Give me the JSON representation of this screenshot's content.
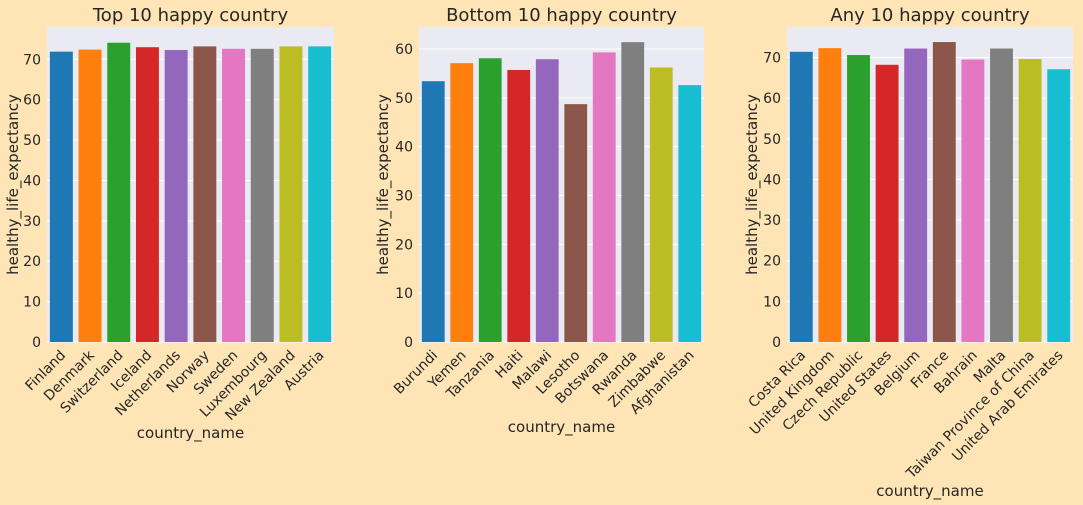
{
  "figure": {
    "background": "#ffe4b5",
    "plot_background": "#eaeaf2",
    "grid_color": "#ffffff"
  },
  "palette": [
    "#1f77b4",
    "#ff7f0e",
    "#2ca02c",
    "#d62728",
    "#9467bd",
    "#8c564b",
    "#e377c2",
    "#7f7f7f",
    "#bcbd22",
    "#17becf"
  ],
  "chart_data": [
    {
      "type": "bar",
      "title": "Top 10 happy country",
      "xlabel": "country_name",
      "ylabel": "healthy_life_expectancy",
      "categories": [
        "Finland",
        "Denmark",
        "Switzerland",
        "Iceland",
        "Netherlands",
        "Norway",
        "Sweden",
        "Luxembourg",
        "New Zealand",
        "Austria"
      ],
      "values": [
        71.9,
        72.4,
        74.1,
        73.0,
        72.3,
        73.2,
        72.6,
        72.6,
        73.2,
        73.2
      ],
      "ylim": [
        0,
        78
      ],
      "yticks": [
        0,
        10,
        20,
        30,
        40,
        50,
        60,
        70
      ],
      "grid": true
    },
    {
      "type": "bar",
      "title": "Bottom 10 happy country",
      "xlabel": "country_name",
      "ylabel": "healthy_life_expectancy",
      "categories": [
        "Burundi",
        "Yemen",
        "Tanzania",
        "Haiti",
        "Malawi",
        "Lesotho",
        "Botswana",
        "Rwanda",
        "Zimbabwe",
        "Afghanistan"
      ],
      "values": [
        53.4,
        57.1,
        58.1,
        55.7,
        57.9,
        48.7,
        59.3,
        61.4,
        56.2,
        52.6
      ],
      "ylim": [
        0,
        64.5
      ],
      "yticks": [
        0,
        10,
        20,
        30,
        40,
        50,
        60
      ],
      "grid": true
    },
    {
      "type": "bar",
      "title": "Any 10 happy country",
      "xlabel": "country_name",
      "ylabel": "healthy_life_expectancy",
      "categories": [
        "Costa Rica",
        "United Kingdom",
        "Czech Republic",
        "United States",
        "Belgium",
        "France",
        "Bahrain",
        "Malta",
        "Taiwan Province of China",
        "United Arab Emirates"
      ],
      "values": [
        71.4,
        72.3,
        70.6,
        68.2,
        72.2,
        73.8,
        69.5,
        72.2,
        69.6,
        67.1
      ],
      "ylim": [
        0,
        77.5
      ],
      "yticks": [
        0,
        10,
        20,
        30,
        40,
        50,
        60,
        70
      ],
      "grid": true
    }
  ]
}
